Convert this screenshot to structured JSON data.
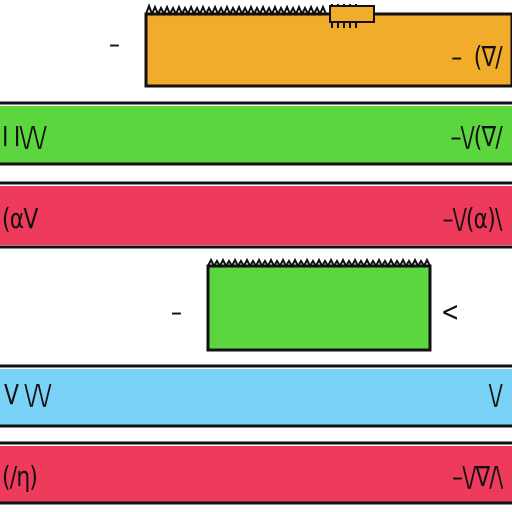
{
  "panels": [
    {
      "id": "top-orange-block",
      "fill": "#f1ac2c",
      "left_text": "–",
      "right_text": "–  (∇/",
      "top_edge": "serrated"
    },
    {
      "id": "green-bar-1",
      "fill": "#5bd63e",
      "left_text": "I I\\/\\/",
      "right_text": "–\\/(∇/"
    },
    {
      "id": "red-bar-1",
      "fill": "#ee3a5b",
      "left_text": "(αV",
      "right_text": "–\\/(α)\\"
    },
    {
      "id": "middle-green-block",
      "fill": "#5bd63e",
      "left_text": "–",
      "right_text": "<",
      "top_edge": "serrated"
    },
    {
      "id": "blue-bar",
      "fill": "#7ad3f7",
      "left_text": "V \\/\\/",
      "right_text": "\\/"
    },
    {
      "id": "red-bar-2",
      "fill": "#ee3a5b",
      "left_text": "(/η)",
      "right_text": "–\\/∇/\\"
    }
  ]
}
